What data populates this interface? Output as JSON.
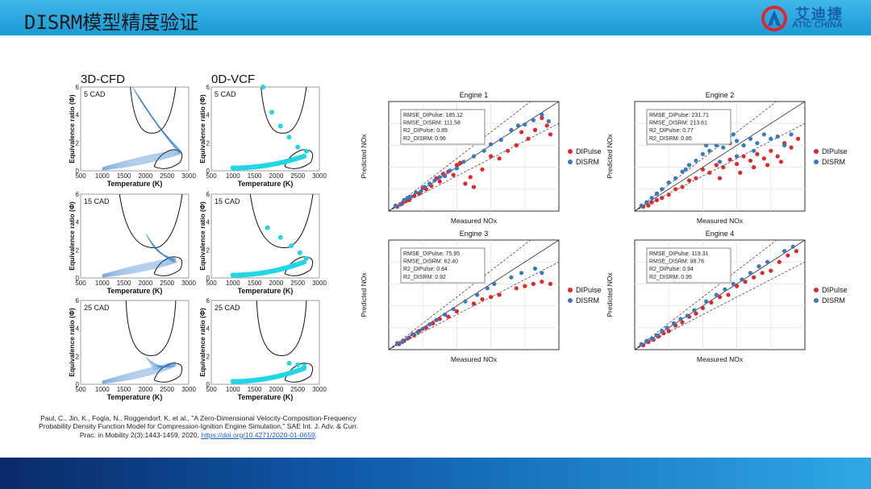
{
  "header": {
    "title": "DISRM模型精度验证"
  },
  "logo": {
    "cn": "艾迪捷",
    "en": "ATIC CHINA"
  },
  "left_figure": {
    "columns": [
      "3D-CFD",
      "0D-VCF"
    ],
    "rows": [
      "5 CAD",
      "15 CAD",
      "25 CAD"
    ],
    "xlabel": "Temperature (K)",
    "ylabel": "Equivalence ratio (Φ)",
    "xticks": [
      "500",
      "1000",
      "1500",
      "2000",
      "2500",
      "3000"
    ],
    "yticks": [
      "0",
      "2",
      "4",
      "6"
    ],
    "colors": {
      "cfd": "#2a78c8",
      "vcf": "#22d6e6"
    }
  },
  "citation": {
    "text": "Paul, C., Jin, K., Fogla, N., Roggendorf, K. et al., \"A Zero-Dimensional Velocity-Composition-Frequency Probability Density Function Model for Compression-Ignition Engine Simulation,\" SAE Int. J. Adv. & Curr. Prac. in Mobility 2(3):1443-1459, 2020, ",
    "link": "https://doi.org/10.4271/2020-01-0659",
    "end": "."
  },
  "chart_data": [
    {
      "type": "scatter",
      "title": "Engine 1",
      "xlabel": "Measured NOx",
      "ylabel": "Predicted NOx",
      "stats": [
        "RMSE_DIPulse: 185.12",
        "RMSE_DISRM: 111.58",
        "R2_DIPulse:  0.89",
        "R2_DISRM: 0.96"
      ],
      "grid": true,
      "legend_position": "right",
      "series": [
        {
          "name": "DIPulse",
          "color": "#e0262f",
          "points": [
            [
              0.05,
              0.04
            ],
            [
              0.08,
              0.07
            ],
            [
              0.1,
              0.09
            ],
            [
              0.12,
              0.1
            ],
            [
              0.15,
              0.14
            ],
            [
              0.18,
              0.16
            ],
            [
              0.2,
              0.21
            ],
            [
              0.22,
              0.2
            ],
            [
              0.25,
              0.23
            ],
            [
              0.28,
              0.3
            ],
            [
              0.3,
              0.27
            ],
            [
              0.32,
              0.34
            ],
            [
              0.35,
              0.36
            ],
            [
              0.38,
              0.33
            ],
            [
              0.4,
              0.42
            ],
            [
              0.42,
              0.44
            ],
            [
              0.45,
              0.25
            ],
            [
              0.48,
              0.31
            ],
            [
              0.5,
              0.22
            ],
            [
              0.55,
              0.38
            ],
            [
              0.6,
              0.5
            ],
            [
              0.65,
              0.48
            ],
            [
              0.7,
              0.55
            ],
            [
              0.75,
              0.6
            ],
            [
              0.78,
              0.72
            ],
            [
              0.82,
              0.66
            ],
            [
              0.86,
              0.74
            ],
            [
              0.9,
              0.85
            ],
            [
              0.93,
              0.78
            ],
            [
              0.95,
              0.7
            ]
          ]
        },
        {
          "name": "DISRM",
          "color": "#3a78c0",
          "points": [
            [
              0.04,
              0.05
            ],
            [
              0.07,
              0.06
            ],
            [
              0.09,
              0.1
            ],
            [
              0.11,
              0.12
            ],
            [
              0.13,
              0.13
            ],
            [
              0.16,
              0.17
            ],
            [
              0.19,
              0.18
            ],
            [
              0.21,
              0.22
            ],
            [
              0.24,
              0.25
            ],
            [
              0.27,
              0.28
            ],
            [
              0.3,
              0.31
            ],
            [
              0.33,
              0.32
            ],
            [
              0.36,
              0.37
            ],
            [
              0.4,
              0.39
            ],
            [
              0.44,
              0.45
            ],
            [
              0.5,
              0.5
            ],
            [
              0.56,
              0.55
            ],
            [
              0.6,
              0.61
            ],
            [
              0.66,
              0.65
            ],
            [
              0.72,
              0.74
            ],
            [
              0.76,
              0.78
            ],
            [
              0.8,
              0.79
            ],
            [
              0.85,
              0.83
            ],
            [
              0.9,
              0.88
            ],
            [
              0.94,
              0.82
            ]
          ]
        }
      ]
    },
    {
      "type": "scatter",
      "title": "Engine 2",
      "xlabel": "Measured NOx",
      "ylabel": "Predicted NOx",
      "stats": [
        "RMSE_DIPulse: 231.71",
        "RMSE_DISRM: 213.61",
        "R2_DIPulse:  0.77",
        "R2_DISRM: 0.85"
      ],
      "grid": true,
      "legend_position": "right",
      "series": [
        {
          "name": "DIPulse",
          "color": "#e0262f",
          "points": [
            [
              0.05,
              0.04
            ],
            [
              0.08,
              0.05
            ],
            [
              0.1,
              0.08
            ],
            [
              0.13,
              0.1
            ],
            [
              0.16,
              0.12
            ],
            [
              0.2,
              0.15
            ],
            [
              0.24,
              0.2
            ],
            [
              0.28,
              0.22
            ],
            [
              0.32,
              0.28
            ],
            [
              0.36,
              0.3
            ],
            [
              0.4,
              0.38
            ],
            [
              0.44,
              0.35
            ],
            [
              0.48,
              0.42
            ],
            [
              0.52,
              0.4
            ],
            [
              0.56,
              0.47
            ],
            [
              0.6,
              0.43
            ],
            [
              0.64,
              0.5
            ],
            [
              0.68,
              0.46
            ],
            [
              0.72,
              0.52
            ],
            [
              0.76,
              0.48
            ],
            [
              0.8,
              0.55
            ],
            [
              0.84,
              0.5
            ],
            [
              0.88,
              0.62
            ],
            [
              0.92,
              0.58
            ],
            [
              0.96,
              0.66
            ],
            [
              0.5,
              0.3
            ],
            [
              0.62,
              0.35
            ],
            [
              0.7,
              0.4
            ],
            [
              0.78,
              0.42
            ],
            [
              0.86,
              0.45
            ]
          ]
        },
        {
          "name": "DISRM",
          "color": "#3a78c0",
          "points": [
            [
              0.04,
              0.05
            ],
            [
              0.07,
              0.08
            ],
            [
              0.1,
              0.12
            ],
            [
              0.13,
              0.16
            ],
            [
              0.16,
              0.2
            ],
            [
              0.2,
              0.26
            ],
            [
              0.24,
              0.3
            ],
            [
              0.28,
              0.36
            ],
            [
              0.32,
              0.42
            ],
            [
              0.36,
              0.46
            ],
            [
              0.4,
              0.52
            ],
            [
              0.44,
              0.55
            ],
            [
              0.48,
              0.6
            ],
            [
              0.52,
              0.58
            ],
            [
              0.56,
              0.62
            ],
            [
              0.6,
              0.64
            ],
            [
              0.64,
              0.6
            ],
            [
              0.68,
              0.66
            ],
            [
              0.72,
              0.62
            ],
            [
              0.76,
              0.7
            ],
            [
              0.8,
              0.66
            ],
            [
              0.84,
              0.68
            ],
            [
              0.88,
              0.6
            ],
            [
              0.92,
              0.7
            ],
            [
              0.6,
              0.5
            ],
            [
              0.7,
              0.55
            ],
            [
              0.5,
              0.45
            ],
            [
              0.3,
              0.38
            ],
            [
              0.42,
              0.6
            ],
            [
              0.58,
              0.7
            ]
          ]
        }
      ]
    },
    {
      "type": "scatter",
      "title": "Engine 3",
      "xlabel": "Measured NOx",
      "ylabel": "Predicted NOx",
      "stats": [
        "RMSE_DIPulse: 75.95",
        "RMSE_DISRM: 62.40",
        "R2_DIPulse:  0.84",
        "R2_DISRM: 0.92"
      ],
      "grid": true,
      "legend_position": "right",
      "series": [
        {
          "name": "DIPulse",
          "color": "#e0262f",
          "points": [
            [
              0.06,
              0.05
            ],
            [
              0.09,
              0.08
            ],
            [
              0.12,
              0.11
            ],
            [
              0.15,
              0.13
            ],
            [
              0.18,
              0.17
            ],
            [
              0.22,
              0.2
            ],
            [
              0.26,
              0.24
            ],
            [
              0.3,
              0.28
            ],
            [
              0.35,
              0.3
            ],
            [
              0.4,
              0.35
            ],
            [
              0.5,
              0.42
            ],
            [
              0.55,
              0.46
            ],
            [
              0.6,
              0.48
            ],
            [
              0.65,
              0.5
            ],
            [
              0.75,
              0.56
            ],
            [
              0.8,
              0.58
            ],
            [
              0.85,
              0.6
            ],
            [
              0.9,
              0.62
            ],
            [
              0.95,
              0.6
            ]
          ]
        },
        {
          "name": "DISRM",
          "color": "#3a78c0",
          "points": [
            [
              0.05,
              0.06
            ],
            [
              0.08,
              0.07
            ],
            [
              0.11,
              0.1
            ],
            [
              0.14,
              0.14
            ],
            [
              0.17,
              0.16
            ],
            [
              0.2,
              0.19
            ],
            [
              0.24,
              0.23
            ],
            [
              0.28,
              0.27
            ],
            [
              0.33,
              0.32
            ],
            [
              0.38,
              0.37
            ],
            [
              0.45,
              0.44
            ],
            [
              0.52,
              0.5
            ],
            [
              0.58,
              0.56
            ],
            [
              0.62,
              0.6
            ],
            [
              0.72,
              0.66
            ],
            [
              0.78,
              0.7
            ],
            [
              0.86,
              0.74
            ],
            [
              0.9,
              0.7
            ]
          ]
        }
      ]
    },
    {
      "type": "scatter",
      "title": "Engine 4",
      "xlabel": "Measured NOx",
      "ylabel": "Predicted NOx",
      "stats": [
        "RMSE_DIPulse: 119.31",
        "RMSE_DISRM: 98.76",
        "R2_DIPulse:  0.94",
        "R2_DISRM: 0.95"
      ],
      "grid": true,
      "legend_position": "right",
      "series": [
        {
          "name": "DIPulse",
          "color": "#e0262f",
          "points": [
            [
              0.05,
              0.04
            ],
            [
              0.08,
              0.07
            ],
            [
              0.11,
              0.09
            ],
            [
              0.14,
              0.12
            ],
            [
              0.17,
              0.15
            ],
            [
              0.2,
              0.17
            ],
            [
              0.24,
              0.22
            ],
            [
              0.28,
              0.25
            ],
            [
              0.32,
              0.3
            ],
            [
              0.36,
              0.33
            ],
            [
              0.4,
              0.38
            ],
            [
              0.45,
              0.43
            ],
            [
              0.5,
              0.48
            ],
            [
              0.55,
              0.5
            ],
            [
              0.6,
              0.58
            ],
            [
              0.65,
              0.62
            ],
            [
              0.7,
              0.66
            ],
            [
              0.75,
              0.7
            ],
            [
              0.8,
              0.72
            ],
            [
              0.85,
              0.8
            ],
            [
              0.9,
              0.86
            ],
            [
              0.95,
              0.9
            ]
          ]
        },
        {
          "name": "DISRM",
          "color": "#3a78c0",
          "points": [
            [
              0.04,
              0.05
            ],
            [
              0.07,
              0.08
            ],
            [
              0.1,
              0.1
            ],
            [
              0.13,
              0.13
            ],
            [
              0.16,
              0.17
            ],
            [
              0.19,
              0.2
            ],
            [
              0.23,
              0.24
            ],
            [
              0.27,
              0.28
            ],
            [
              0.31,
              0.31
            ],
            [
              0.35,
              0.36
            ],
            [
              0.42,
              0.44
            ],
            [
              0.48,
              0.5
            ],
            [
              0.53,
              0.55
            ],
            [
              0.58,
              0.6
            ],
            [
              0.63,
              0.64
            ],
            [
              0.68,
              0.7
            ],
            [
              0.73,
              0.76
            ],
            [
              0.78,
              0.8
            ],
            [
              0.88,
              0.9
            ],
            [
              0.93,
              0.94
            ]
          ]
        }
      ]
    }
  ]
}
